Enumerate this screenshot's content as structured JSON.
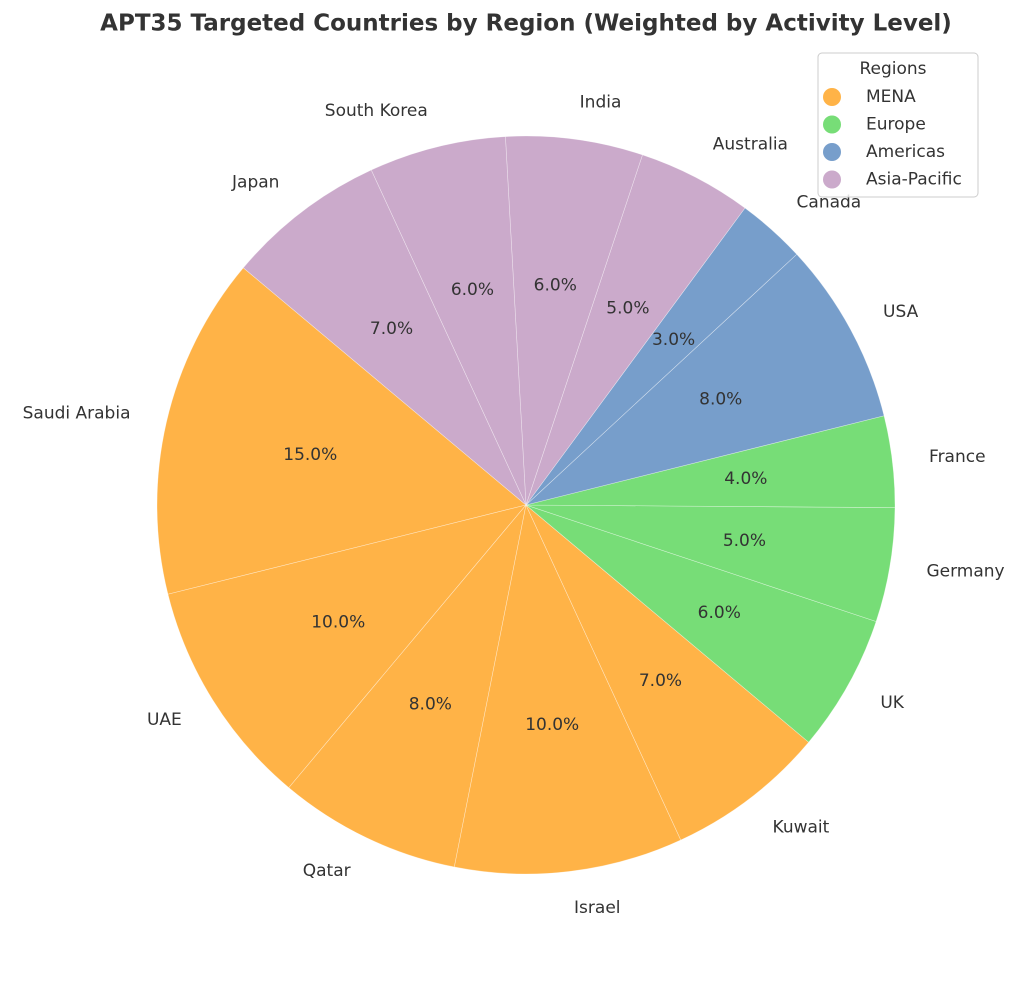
{
  "chart_data": {
    "type": "pie",
    "title": "APT35 Targeted Countries by Region (Weighted by Activity Level)",
    "categories": [
      "Saudi Arabia",
      "UAE",
      "Qatar",
      "Israel",
      "Kuwait",
      "UK",
      "Germany",
      "France",
      "USA",
      "Canada",
      "Australia",
      "India",
      "South Korea",
      "Japan"
    ],
    "values": [
      15,
      10,
      8,
      10,
      7,
      6,
      5,
      4,
      8,
      3,
      5,
      6,
      6,
      7
    ],
    "value_labels": [
      "15.0%",
      "10.0%",
      "8.0%",
      "10.0%",
      "7.0%",
      "6.0%",
      "5.0%",
      "4.0%",
      "8.0%",
      "3.0%",
      "5.0%",
      "6.0%",
      "6.0%",
      "7.0%"
    ],
    "colors": [
      "#ffb347",
      "#ffb347",
      "#ffb347",
      "#ffb347",
      "#ffb347",
      "#77dd77",
      "#77dd77",
      "#77dd77",
      "#779ecb",
      "#779ecb",
      "#cbaacb",
      "#cbaacb",
      "#cbaacb",
      "#cbaacb"
    ],
    "start_angle": 140,
    "legend": {
      "title": "Regions",
      "position": "upper right",
      "entries": [
        {
          "name": "MENA",
          "color": "#ffb347"
        },
        {
          "name": "Europe",
          "color": "#77dd77"
        },
        {
          "name": "Americas",
          "color": "#779ecb"
        },
        {
          "name": "Asia-Pacific",
          "color": "#cbaacb"
        }
      ]
    }
  }
}
